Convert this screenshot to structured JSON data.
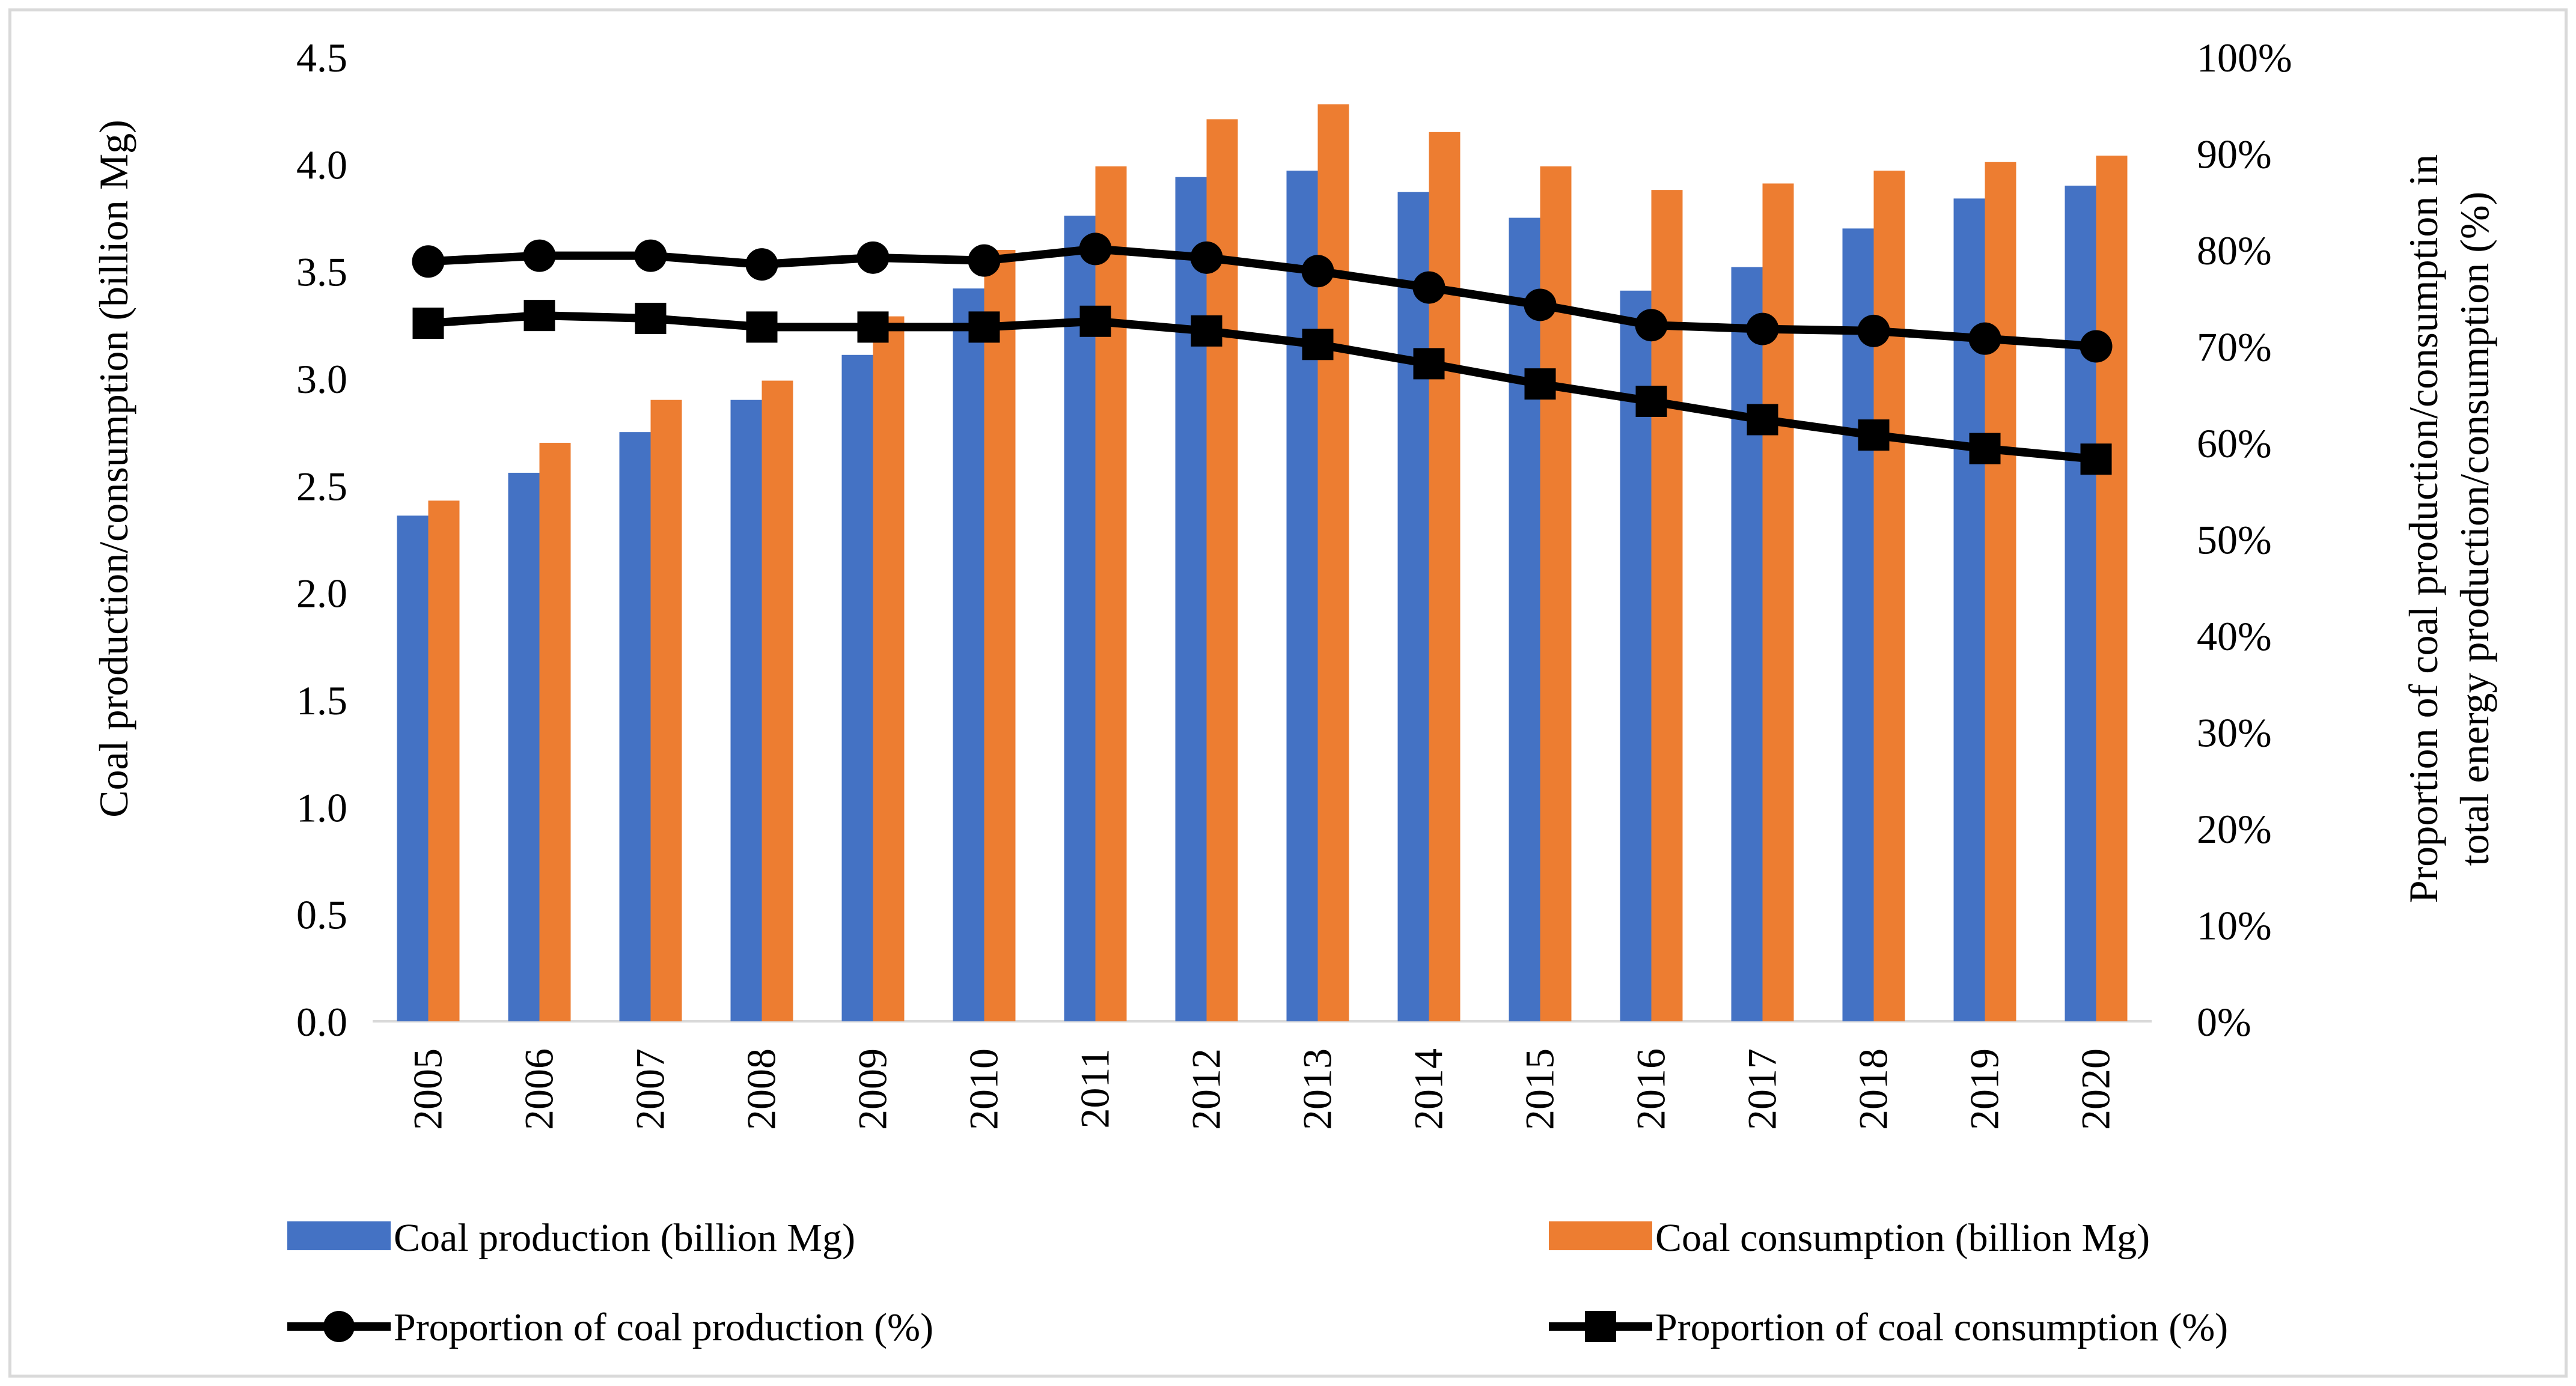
{
  "chart_data": {
    "type": "bar",
    "categories": [
      "2005",
      "2006",
      "2007",
      "2008",
      "2009",
      "2010",
      "2011",
      "2012",
      "2013",
      "2014",
      "2015",
      "2016",
      "2017",
      "2018",
      "2019",
      "2020"
    ],
    "series": [
      {
        "name": "Coal production (billion Mg)",
        "kind": "bar",
        "axis": "left",
        "color": "#4472c4",
        "values": [
          2.36,
          2.56,
          2.75,
          2.9,
          3.11,
          3.42,
          3.76,
          3.94,
          3.97,
          3.87,
          3.75,
          3.41,
          3.52,
          3.7,
          3.84,
          3.9
        ]
      },
      {
        "name": "Coal consumption (billion Mg)",
        "kind": "bar",
        "axis": "left",
        "color": "#ed7d31",
        "values": [
          2.43,
          2.7,
          2.9,
          2.99,
          3.29,
          3.6,
          3.99,
          4.21,
          4.28,
          4.15,
          3.99,
          3.88,
          3.91,
          3.97,
          4.01,
          4.04
        ]
      },
      {
        "name": "Proportion of coal production (%)",
        "kind": "line",
        "marker": "circle",
        "axis": "right",
        "color": "#000000",
        "values": [
          78.8,
          79.4,
          79.4,
          78.5,
          79.2,
          78.9,
          80.1,
          79.2,
          77.8,
          76.1,
          74.3,
          72.2,
          71.8,
          71.6,
          70.8,
          70.0
        ]
      },
      {
        "name": "Proportion of coal consumption (%)",
        "kind": "line",
        "marker": "square",
        "axis": "right",
        "color": "#000000",
        "values": [
          72.4,
          73.2,
          72.9,
          72.0,
          72.0,
          72.0,
          72.6,
          71.6,
          70.2,
          68.2,
          66.1,
          64.3,
          62.4,
          60.8,
          59.4,
          58.3
        ]
      }
    ],
    "y_left": {
      "label": "Coal production/consumption (billion Mg)",
      "ylim": [
        0,
        4.5
      ],
      "ticks": [
        "0.0",
        "0.5",
        "1.0",
        "1.5",
        "2.0",
        "2.5",
        "3.0",
        "3.5",
        "4.0",
        "4.5"
      ]
    },
    "y_right": {
      "label_line1": "Proportion of coal production/consumption in",
      "label_line2": "total energy production/consumption (%)",
      "ylim": [
        0,
        100
      ],
      "ticks": [
        "0%",
        "10%",
        "20%",
        "30%",
        "40%",
        "50%",
        "60%",
        "70%",
        "80%",
        "90%",
        "100%"
      ]
    },
    "grid": false,
    "legend_position": "bottom"
  }
}
